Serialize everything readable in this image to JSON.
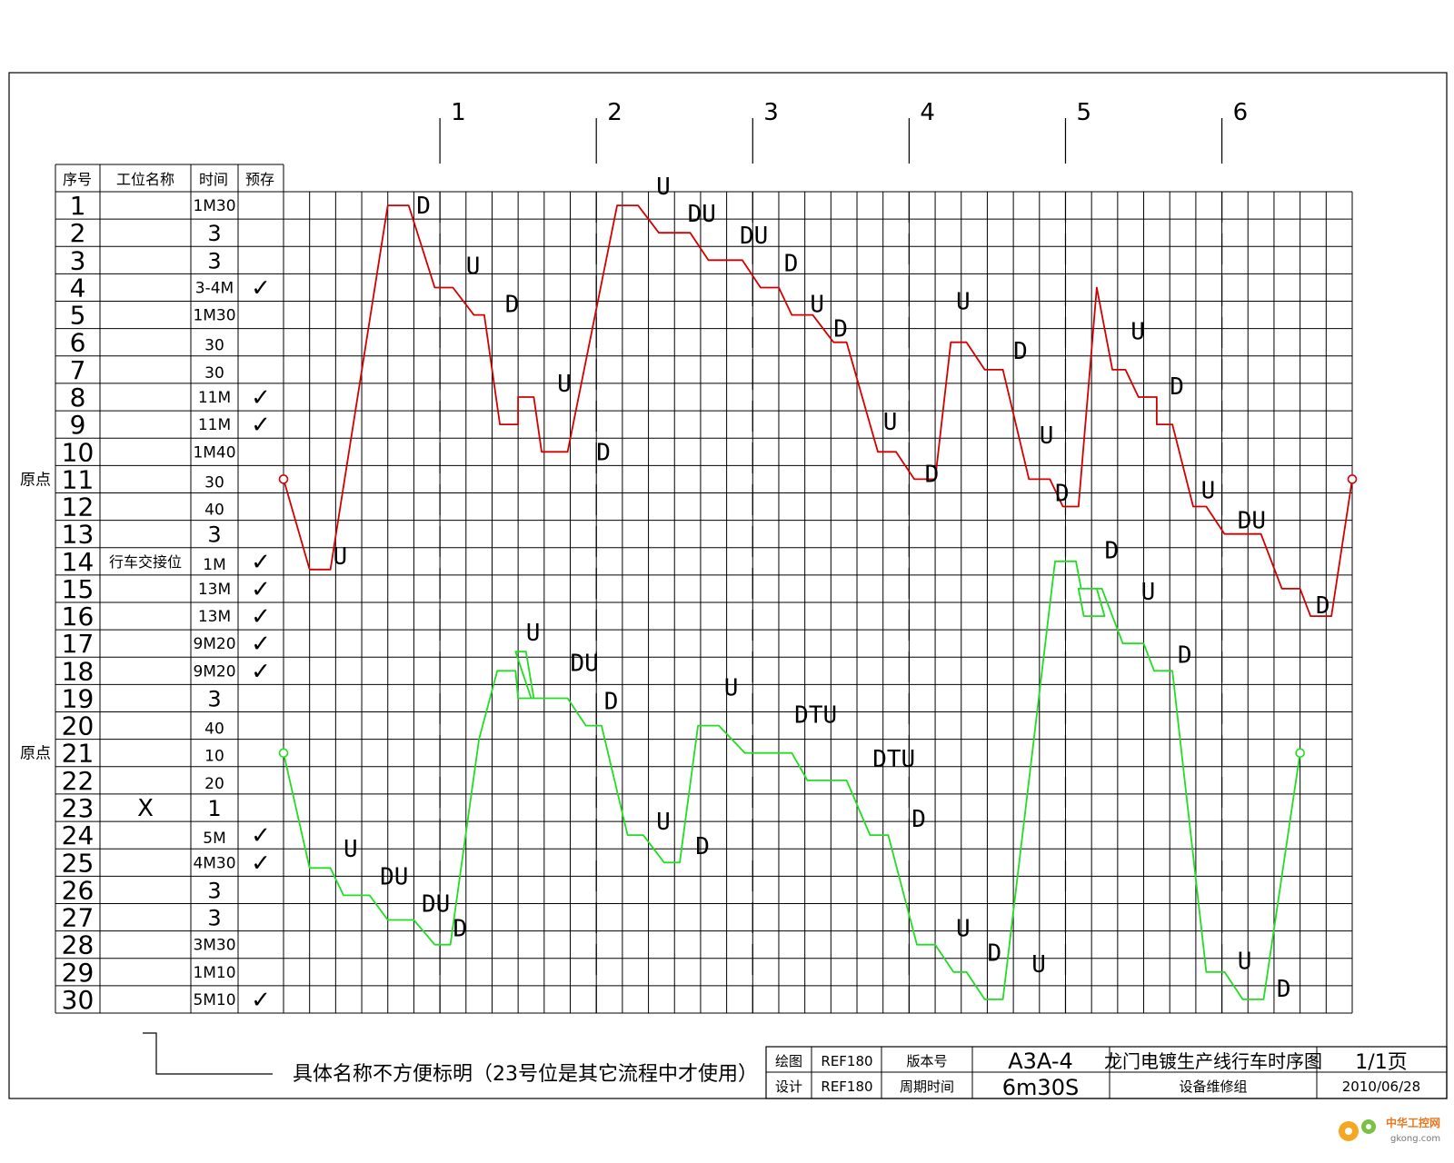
{
  "header": {
    "col_seq": "序号",
    "col_station": "工位名称",
    "col_time": "时间",
    "col_prestore": "预存"
  },
  "check_mark": "✓",
  "origin_label": "原点",
  "origin_rows": [
    11,
    21
  ],
  "time_markers": [
    "1",
    "2",
    "3",
    "4",
    "5",
    "6"
  ],
  "rows": [
    {
      "seq": "1",
      "name": "",
      "time": "1M30",
      "pre": false
    },
    {
      "seq": "2",
      "name": "",
      "time": "3",
      "pre": false
    },
    {
      "seq": "3",
      "name": "",
      "time": "3",
      "pre": false
    },
    {
      "seq": "4",
      "name": "",
      "time": "3-4M",
      "pre": true
    },
    {
      "seq": "5",
      "name": "",
      "time": "1M30",
      "pre": false
    },
    {
      "seq": "6",
      "name": "",
      "time": "30",
      "pre": false
    },
    {
      "seq": "7",
      "name": "",
      "time": "30",
      "pre": false
    },
    {
      "seq": "8",
      "name": "",
      "time": "11M",
      "pre": true
    },
    {
      "seq": "9",
      "name": "",
      "time": "11M",
      "pre": true
    },
    {
      "seq": "10",
      "name": "",
      "time": "1M40",
      "pre": false
    },
    {
      "seq": "11",
      "name": "",
      "time": "30",
      "pre": false
    },
    {
      "seq": "12",
      "name": "",
      "time": "40",
      "pre": false
    },
    {
      "seq": "13",
      "name": "",
      "time": "3",
      "pre": false
    },
    {
      "seq": "14",
      "name": "行车交接位",
      "time": "1M",
      "pre": true
    },
    {
      "seq": "15",
      "name": "",
      "time": "13M",
      "pre": true
    },
    {
      "seq": "16",
      "name": "",
      "time": "13M",
      "pre": true
    },
    {
      "seq": "17",
      "name": "",
      "time": "9M20",
      "pre": true
    },
    {
      "seq": "18",
      "name": "",
      "time": "9M20",
      "pre": true
    },
    {
      "seq": "19",
      "name": "",
      "time": "3",
      "pre": false
    },
    {
      "seq": "20",
      "name": "",
      "time": "40",
      "pre": false
    },
    {
      "seq": "21",
      "name": "",
      "time": "10",
      "pre": false
    },
    {
      "seq": "22",
      "name": "",
      "time": "20",
      "pre": false
    },
    {
      "seq": "23",
      "name": "X",
      "time": "1",
      "pre": false
    },
    {
      "seq": "24",
      "name": "",
      "time": "5M",
      "pre": true
    },
    {
      "seq": "25",
      "name": "",
      "time": "4M30",
      "pre": true
    },
    {
      "seq": "26",
      "name": "",
      "time": "3",
      "pre": false
    },
    {
      "seq": "27",
      "name": "",
      "time": "3",
      "pre": false
    },
    {
      "seq": "28",
      "name": "",
      "time": "3M30",
      "pre": false
    },
    {
      "seq": "29",
      "name": "",
      "time": "1M10",
      "pre": false
    },
    {
      "seq": "30",
      "name": "",
      "time": "5M10",
      "pre": true
    }
  ],
  "crane_red": {
    "color": "#d40000",
    "path": [
      [
        0,
        11
      ],
      [
        1,
        14.3
      ],
      [
        1.8,
        14.3
      ],
      [
        4,
        1
      ],
      [
        4.8,
        1
      ],
      [
        5.8,
        4
      ],
      [
        6.5,
        4
      ],
      [
        7.3,
        5
      ],
      [
        7.7,
        5
      ],
      [
        8.3,
        9
      ],
      [
        9,
        9
      ],
      [
        9,
        8
      ],
      [
        9.6,
        8
      ],
      [
        9.9,
        10
      ],
      [
        10.9,
        10
      ],
      [
        12.8,
        1
      ],
      [
        13.6,
        1
      ],
      [
        14.4,
        2
      ],
      [
        15.6,
        2
      ],
      [
        16.3,
        3
      ],
      [
        17.6,
        3
      ],
      [
        18.3,
        4
      ],
      [
        19,
        4
      ],
      [
        19.5,
        5
      ],
      [
        20.3,
        5
      ],
      [
        21.1,
        6
      ],
      [
        21.6,
        6
      ],
      [
        22.8,
        10
      ],
      [
        23.5,
        10
      ],
      [
        24.2,
        11
      ],
      [
        25,
        11
      ],
      [
        25.6,
        6
      ],
      [
        26.2,
        6
      ],
      [
        26.9,
        7
      ],
      [
        27.6,
        7
      ],
      [
        28.6,
        11
      ],
      [
        29.4,
        11
      ],
      [
        29.9,
        12
      ],
      [
        30.5,
        12
      ],
      [
        31.2,
        4
      ],
      [
        31.8,
        7
      ],
      [
        32.3,
        7
      ],
      [
        32.8,
        8
      ],
      [
        33.5,
        8
      ],
      [
        33.5,
        9
      ],
      [
        34.1,
        9
      ],
      [
        34.9,
        12
      ],
      [
        35.4,
        12
      ],
      [
        36.1,
        13
      ],
      [
        37.5,
        13
      ],
      [
        38.3,
        15
      ],
      [
        39,
        15
      ],
      [
        39.4,
        16
      ],
      [
        40.2,
        16
      ],
      [
        41,
        11
      ]
    ],
    "labels": [
      {
        "text": "D",
        "at": [
          5.1,
          1
        ]
      },
      {
        "text": "U",
        "at": [
          7.0,
          3.2
        ]
      },
      {
        "text": "D",
        "at": [
          8.5,
          4.6
        ]
      },
      {
        "text": "U",
        "at": [
          10.5,
          7.5
        ]
      },
      {
        "text": "D",
        "at": [
          12.0,
          10
        ]
      },
      {
        "text": "U",
        "at": [
          1.9,
          13.8
        ]
      },
      {
        "text": "U",
        "at": [
          14.3,
          0.3
        ]
      },
      {
        "text": "DU",
        "at": [
          15.5,
          1.3
        ]
      },
      {
        "text": "DU",
        "at": [
          17.5,
          2.1
        ]
      },
      {
        "text": "D",
        "at": [
          19.2,
          3.1
        ]
      },
      {
        "text": "U",
        "at": [
          20.2,
          4.6
        ]
      },
      {
        "text": "D",
        "at": [
          21.1,
          5.5
        ]
      },
      {
        "text": "U",
        "at": [
          23.0,
          8.9
        ]
      },
      {
        "text": "D",
        "at": [
          24.6,
          10.8
        ]
      },
      {
        "text": "U",
        "at": [
          25.8,
          4.5
        ]
      },
      {
        "text": "D",
        "at": [
          28.0,
          6.3
        ]
      },
      {
        "text": "U",
        "at": [
          29.0,
          9.4
        ]
      },
      {
        "text": "D",
        "at": [
          29.6,
          11.5
        ]
      },
      {
        "text": "U",
        "at": [
          32.5,
          5.6
        ]
      },
      {
        "text": "D",
        "at": [
          34.0,
          7.6
        ]
      },
      {
        "text": "U",
        "at": [
          35.2,
          11.4
        ]
      },
      {
        "text": "DU",
        "at": [
          36.6,
          12.5
        ]
      },
      {
        "text": "D",
        "at": [
          39.6,
          15.6
        ]
      }
    ]
  },
  "crane_green": {
    "color": "#22dd22",
    "path": [
      [
        0,
        21
      ],
      [
        1,
        25.2
      ],
      [
        1.8,
        25.2
      ],
      [
        2.3,
        26.2
      ],
      [
        3.3,
        26.2
      ],
      [
        4,
        27.1
      ],
      [
        5,
        27.1
      ],
      [
        5.8,
        28
      ],
      [
        6.4,
        28
      ],
      [
        7.5,
        20.5
      ],
      [
        8.2,
        18
      ],
      [
        8.9,
        18
      ],
      [
        9,
        19
      ],
      [
        9.6,
        19
      ],
      [
        9.3,
        17.3
      ],
      [
        8.9,
        17.3
      ],
      [
        9.5,
        19
      ],
      [
        10.9,
        19
      ],
      [
        11.6,
        20
      ],
      [
        12.2,
        20
      ],
      [
        13.2,
        24
      ],
      [
        13.8,
        24
      ],
      [
        14.6,
        25
      ],
      [
        15.2,
        25
      ],
      [
        15.9,
        20
      ],
      [
        16.7,
        20
      ],
      [
        17.7,
        21
      ],
      [
        19.5,
        21
      ],
      [
        20.1,
        22
      ],
      [
        21.6,
        22
      ],
      [
        22.5,
        24
      ],
      [
        23.2,
        24
      ],
      [
        24.3,
        28
      ],
      [
        25,
        28
      ],
      [
        25.7,
        29
      ],
      [
        26.2,
        29
      ],
      [
        26.9,
        30
      ],
      [
        27.6,
        30
      ],
      [
        29.6,
        14
      ],
      [
        30.4,
        14
      ],
      [
        30.6,
        15
      ],
      [
        31.2,
        15
      ],
      [
        31.5,
        16
      ],
      [
        30.7,
        16
      ],
      [
        30.5,
        15
      ],
      [
        31.4,
        15
      ],
      [
        32.2,
        17
      ],
      [
        33,
        17
      ],
      [
        33.4,
        18
      ],
      [
        34.1,
        18
      ],
      [
        35.4,
        29
      ],
      [
        36.1,
        29
      ],
      [
        36.8,
        30
      ],
      [
        37.6,
        30
      ],
      [
        39,
        21
      ]
    ],
    "labels": [
      {
        "text": "U",
        "at": [
          2.3,
          24.5
        ]
      },
      {
        "text": "DU",
        "at": [
          3.7,
          25.5
        ]
      },
      {
        "text": "DU",
        "at": [
          5.3,
          26.5
        ]
      },
      {
        "text": "D",
        "at": [
          6.5,
          27.4
        ]
      },
      {
        "text": "U",
        "at": [
          9.3,
          16.6
        ]
      },
      {
        "text": "DU",
        "at": [
          11.0,
          17.7
        ]
      },
      {
        "text": "D",
        "at": [
          12.3,
          19.1
        ]
      },
      {
        "text": "U",
        "at": [
          14.3,
          23.5
        ]
      },
      {
        "text": "D",
        "at": [
          15.8,
          24.4
        ]
      },
      {
        "text": "U",
        "at": [
          16.9,
          18.6
        ]
      },
      {
        "text": "DTU",
        "at": [
          19.6,
          19.6
        ]
      },
      {
        "text": "DTU",
        "at": [
          22.6,
          21.2
        ]
      },
      {
        "text": "D",
        "at": [
          24.1,
          23.4
        ]
      },
      {
        "text": "U",
        "at": [
          25.8,
          27.4
        ]
      },
      {
        "text": "D",
        "at": [
          27.0,
          28.3
        ]
      },
      {
        "text": "U",
        "at": [
          28.7,
          28.7
        ]
      },
      {
        "text": "D",
        "at": [
          31.5,
          13.6
        ]
      },
      {
        "text": "U",
        "at": [
          32.9,
          15.1
        ]
      },
      {
        "text": "D",
        "at": [
          34.3,
          17.4
        ]
      },
      {
        "text": "U",
        "at": [
          36.6,
          28.6
        ]
      },
      {
        "text": "D",
        "at": [
          38.1,
          29.6
        ]
      }
    ]
  },
  "note": "具体名称不方便标明（23号位是其它流程中才使用）",
  "title_block": {
    "drawn_label": "绘图",
    "drawn_value": "REF180",
    "design_label": "设计",
    "design_value": "REF180",
    "version_label": "版本号",
    "version_value": "A3A-4",
    "cycle_label": "周期时间",
    "cycle_value": "6m30S",
    "title": "龙门电镀生产线行车时序图",
    "department": "设备维修组",
    "page": "1/1页",
    "date": "2010/06/28"
  },
  "watermark": {
    "cn": "中华工控网",
    "en": "gkong.com"
  }
}
